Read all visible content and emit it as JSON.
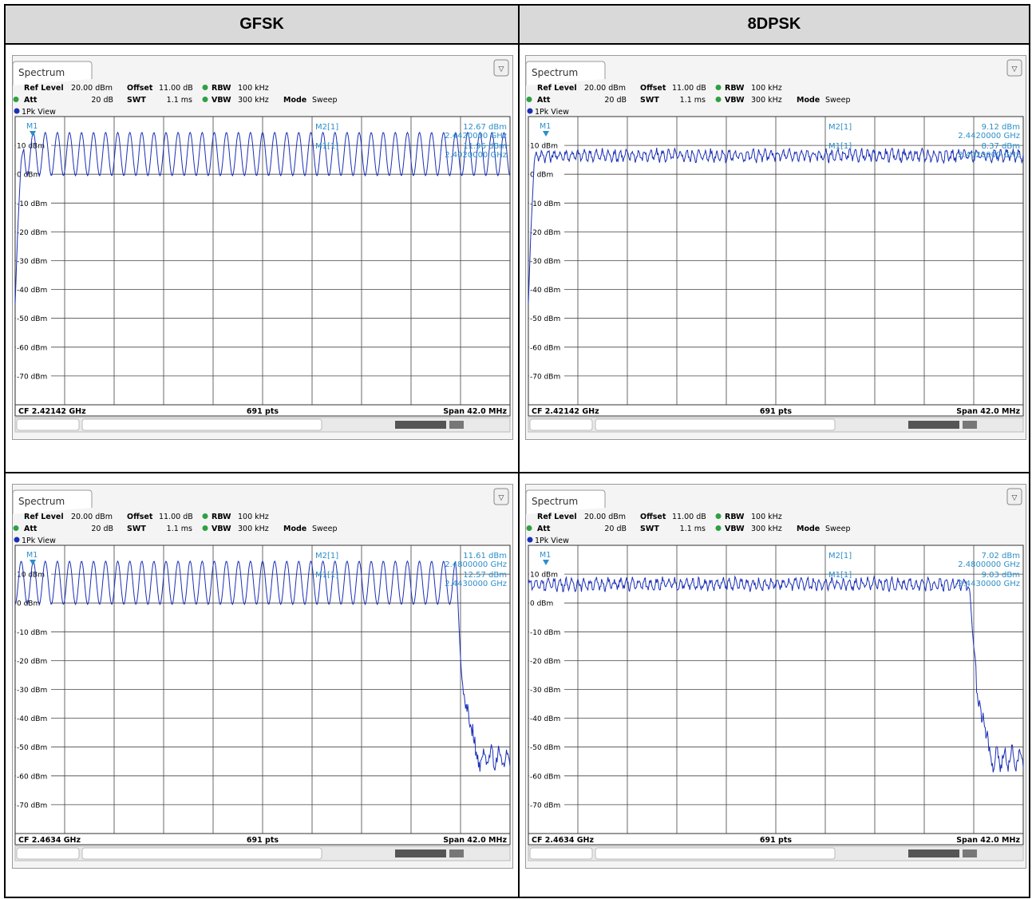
{
  "headers": [
    "GFSK",
    "8DPSK"
  ],
  "panel_common": {
    "tab": "Spectrum",
    "ref_level_label": "Ref Level",
    "ref_level_value": "20.00 dBm",
    "offset_label": "Offset",
    "offset_value": "11.00 dB",
    "rbw_label": "RBW",
    "rbw_value": "100 kHz",
    "att_label": "Att",
    "att_value": "20 dB",
    "swt_label": "SWT",
    "swt_value": "1.1 ms",
    "vbw_label": "VBW",
    "vbw_value": "300 kHz",
    "mode_label": "Mode",
    "mode_value": "Sweep",
    "view": "1Pk View",
    "pts": "691 pts",
    "span": "Span 42.0 MHz",
    "ytick_labels": [
      "10 dBm",
      "0 dBm",
      "-10 dBm",
      "-20 dBm",
      "-30 dBm",
      "-40 dBm",
      "-50 dBm",
      "-60 dBm",
      "-70 dBm"
    ],
    "colors": {
      "trace": "#1a2fb8",
      "marker_text": "#2b8fc9",
      "grid": "#444444"
    }
  },
  "chart_data": [
    {
      "type": "line",
      "modulation": "GFSK",
      "cf": "CF 2.42142 GHz",
      "ylim": [
        -80,
        20
      ],
      "grid": true,
      "pattern": "gfsk",
      "edge": "low",
      "first_marker_label": "M1",
      "readout": [
        {
          "label": "M2[1]",
          "level": "12.67 dBm",
          "freq": "2.4420000 GHz"
        },
        {
          "label": "M1[1]",
          "level": "11.96 dBm",
          "freq": "2.4020000 GHz"
        }
      ]
    },
    {
      "type": "line",
      "modulation": "8DPSK",
      "cf": "CF 2.42142 GHz",
      "ylim": [
        -80,
        20
      ],
      "grid": true,
      "pattern": "dpsk",
      "edge": "low",
      "first_marker_label": "M1",
      "readout": [
        {
          "label": "M2[1]",
          "level": "9.12 dBm",
          "freq": "2.4420000 GHz"
        },
        {
          "label": "M1[1]",
          "level": "8.37 dBm",
          "freq": "2.4020000 GHz"
        }
      ]
    },
    {
      "type": "line",
      "modulation": "GFSK",
      "cf": "CF 2.4634 GHz",
      "ylim": [
        -80,
        20
      ],
      "grid": true,
      "pattern": "gfsk",
      "edge": "high",
      "first_marker_label": "M1",
      "readout": [
        {
          "label": "M2[1]",
          "level": "11.61 dBm",
          "freq": "2.4800000 GHz"
        },
        {
          "label": "M1[1]",
          "level": "12.57 dBm",
          "freq": "2.4430000 GHz"
        }
      ]
    },
    {
      "type": "line",
      "modulation": "8DPSK",
      "cf": "CF 2.4634 GHz",
      "ylim": [
        -80,
        20
      ],
      "grid": true,
      "pattern": "dpsk",
      "edge": "high",
      "first_marker_label": "M1",
      "readout": [
        {
          "label": "M2[1]",
          "level": "7.02 dBm",
          "freq": "2.4800000 GHz"
        },
        {
          "label": "M1[1]",
          "level": "9.03 dBm",
          "freq": "2.4430000 GHz"
        }
      ]
    }
  ]
}
